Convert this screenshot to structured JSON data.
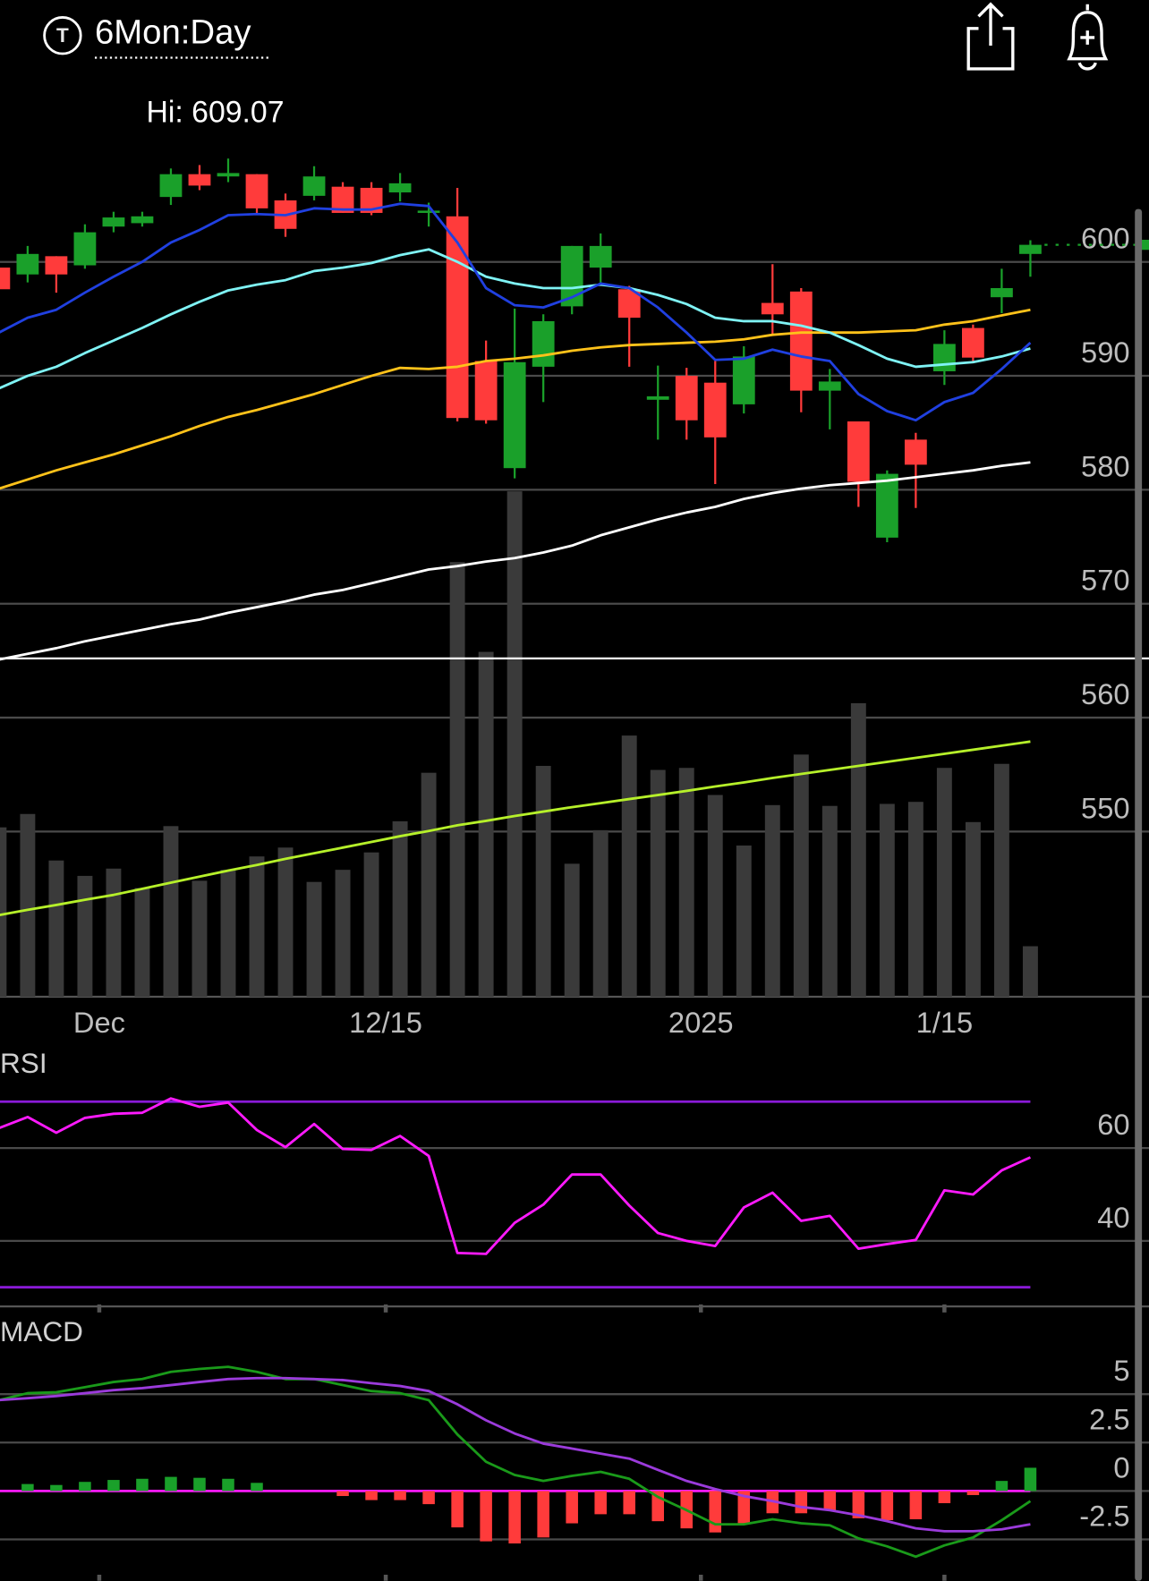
{
  "header": {
    "icon": "T",
    "title": "6Mon:Day"
  },
  "chart_data": [
    {
      "type": "candlestick",
      "annotation": "Hi: 609.07",
      "categories": [
        null,
        null,
        null,
        null,
        null,
        null,
        null,
        null,
        null,
        null,
        null,
        null,
        null,
        null,
        null,
        null,
        null,
        null,
        null,
        null,
        null,
        null,
        null,
        null,
        null,
        null,
        null,
        null,
        null,
        null,
        null,
        null,
        null,
        null,
        null,
        null,
        null
      ],
      "open": [
        599.5,
        598.9,
        600.5,
        599.7,
        603.1,
        603.4,
        605.7,
        607.7,
        607.5,
        607.7,
        605.4,
        605.8,
        606.6,
        606.5,
        606.1,
        604.3,
        604.0,
        591.3,
        581.9,
        590.8,
        596.1,
        599.5,
        597.6,
        587.9,
        590.0,
        589.4,
        587.5,
        596.4,
        597.4,
        588.7,
        586.0,
        575.8,
        584.4,
        590.4,
        594.2,
        596.9,
        600.7
      ],
      "high": [
        599.7,
        601.4,
        600.5,
        603.3,
        604.4,
        604.4,
        608.2,
        608.5,
        609.07,
        607.7,
        606.0,
        608.4,
        607.0,
        607.0,
        607.8,
        605.2,
        606.5,
        593.1,
        595.9,
        595.4,
        601.4,
        602.5,
        597.9,
        590.9,
        590.7,
        591.3,
        592.6,
        599.8,
        597.7,
        590.6,
        586.0,
        581.7,
        585.0,
        594.0,
        594.5,
        599.4,
        601.9
      ],
      "low": [
        597.4,
        598.2,
        597.3,
        599.4,
        602.6,
        603.1,
        605.0,
        606.3,
        607.0,
        604.2,
        602.2,
        605.4,
        604.3,
        604.1,
        605.3,
        603.1,
        586.0,
        585.8,
        581.0,
        587.7,
        595.4,
        598.2,
        590.8,
        584.4,
        584.4,
        580.5,
        586.7,
        593.5,
        586.8,
        585.3,
        578.5,
        575.4,
        578.4,
        589.2,
        591.1,
        595.5,
        598.7
      ],
      "close": [
        597.6,
        600.7,
        598.9,
        602.6,
        603.9,
        604.0,
        607.7,
        606.7,
        607.8,
        604.7,
        602.9,
        607.5,
        604.3,
        604.3,
        606.9,
        604.5,
        586.3,
        586.1,
        591.2,
        594.8,
        601.4,
        601.4,
        595.1,
        588.2,
        586.1,
        584.6,
        591.7,
        595.4,
        588.7,
        589.5,
        580.7,
        581.4,
        582.2,
        592.8,
        591.6,
        597.7,
        601.5
      ],
      "up_color": "#1aa02a",
      "down_color": "#ff3b3b",
      "overlays": [
        {
          "color": "#ffffff",
          "values": [
            565.1,
            565.6,
            566.1,
            566.7,
            567.2,
            567.7,
            568.2,
            568.6,
            569.2,
            569.7,
            570.2,
            570.8,
            571.2,
            571.8,
            572.4,
            573.0,
            573.3,
            573.7,
            574.0,
            574.5,
            575.1,
            576.0,
            576.7,
            577.4,
            578.0,
            578.5,
            579.2,
            579.7,
            580.1,
            580.4,
            580.6,
            580.8,
            581.1,
            581.4,
            581.7,
            582.1,
            582.4
          ]
        },
        {
          "color": "#ffc21a",
          "values": [
            580.1,
            580.9,
            581.7,
            582.4,
            583.1,
            583.9,
            584.7,
            585.6,
            586.4,
            587.0,
            587.7,
            588.4,
            589.2,
            590.0,
            590.7,
            590.6,
            590.8,
            591.3,
            591.5,
            591.8,
            592.2,
            592.5,
            592.7,
            592.8,
            592.9,
            593.0,
            593.2,
            593.6,
            593.8,
            593.8,
            593.8,
            593.9,
            594.0,
            594.5,
            594.8,
            595.3,
            595.8
          ]
        },
        {
          "color": "#7ff3f5",
          "values": [
            588.9,
            590.0,
            590.8,
            592.0,
            593.1,
            594.2,
            595.4,
            596.5,
            597.5,
            598.0,
            598.4,
            599.2,
            599.5,
            599.9,
            600.6,
            601.1,
            600.0,
            598.7,
            598.1,
            597.7,
            597.7,
            598.0,
            597.7,
            597.1,
            596.3,
            595.1,
            594.8,
            594.8,
            594.4,
            593.8,
            592.7,
            591.5,
            590.8,
            591.0,
            591.2,
            591.7,
            592.4
          ]
        },
        {
          "color": "#2040e0",
          "values": [
            593.8,
            595.1,
            595.8,
            597.3,
            598.7,
            600.0,
            601.7,
            602.8,
            604.1,
            604.2,
            604.1,
            604.7,
            604.6,
            604.6,
            605.1,
            604.9,
            601.7,
            597.7,
            596.2,
            596.0,
            596.9,
            598.1,
            597.7,
            596.0,
            593.8,
            591.4,
            591.5,
            592.3,
            591.7,
            591.3,
            588.4,
            586.9,
            586.1,
            587.7,
            588.5,
            590.6,
            592.9
          ]
        }
      ],
      "ref_line": {
        "value": 565.2,
        "color": "#ffffff"
      },
      "ylim": [
        535.5,
        615
      ],
      "yticks": [
        600,
        590,
        580,
        570,
        560,
        550
      ],
      "grid": true,
      "xticks": [
        {
          "value": 3.5,
          "label": "Dec"
        },
        {
          "value": 13.5,
          "label": "12/15"
        },
        {
          "value": 24.5,
          "label": "2025"
        },
        {
          "value": 33,
          "label": "1/15"
        }
      ]
    },
    {
      "type": "bar",
      "color": "#3a3a3a",
      "values": [
        41.9,
        45.2,
        33.7,
        29.9,
        31.7,
        26.9,
        42.2,
        28.7,
        31.4,
        34.7,
        36.9,
        28.4,
        31.4,
        35.7,
        43.4,
        55.4,
        107.5,
        85.3,
        125.0,
        57.1,
        32.9,
        41.2,
        64.6,
        56.1,
        56.6,
        49.9,
        37.4,
        47.4,
        59.9,
        47.2,
        72.6,
        47.7,
        48.2,
        56.6,
        43.2,
        57.6,
        12.5
      ],
      "ma": {
        "color": "#b6f02a",
        "values": [
          20.2,
          21.5,
          22.7,
          24.0,
          25.2,
          26.7,
          28.2,
          29.7,
          31.2,
          32.6,
          34.1,
          35.5,
          36.9,
          38.3,
          39.7,
          41.0,
          42.4,
          43.5,
          44.7,
          45.8,
          46.9,
          47.9,
          48.9,
          49.9,
          50.9,
          52.0,
          53.0,
          54.1,
          55.1,
          56.1,
          57.1,
          58.1,
          59.1,
          60.1,
          61.1,
          62.1,
          63.1
        ]
      },
      "ylim": [
        0,
        224
      ]
    },
    {
      "type": "line",
      "title": "RSI",
      "series": [
        {
          "color": "#ff1aff",
          "values": [
            64.3,
            66.7,
            63.3,
            66.5,
            67.4,
            67.6,
            70.7,
            68.9,
            69.8,
            63.9,
            60.2,
            65.2,
            59.8,
            59.6,
            62.6,
            58.3,
            37.4,
            37.2,
            43.9,
            47.8,
            54.3,
            54.3,
            47.6,
            41.7,
            40.0,
            38.9,
            47.2,
            50.4,
            44.3,
            45.4,
            38.3,
            39.3,
            40.2,
            50.9,
            50.0,
            55.2,
            58.0
          ]
        }
      ],
      "levels": [
        70,
        30
      ],
      "level_color": "#8a1ad8",
      "ylim": [
        26,
        80
      ],
      "yticks": [
        60,
        40
      ],
      "grid": true
    },
    {
      "type": "macd",
      "title": "MACD",
      "series": [
        {
          "color": "#1a9a1a",
          "values": [
            4.69,
            5.05,
            5.1,
            5.36,
            5.63,
            5.78,
            6.15,
            6.3,
            6.41,
            6.15,
            5.78,
            5.78,
            5.47,
            5.16,
            5.05,
            4.69,
            2.92,
            1.51,
            0.83,
            0.52,
            0.78,
            0.99,
            0.63,
            -0.31,
            -0.99,
            -1.72,
            -1.72,
            -1.46,
            -1.67,
            -1.77,
            -2.45,
            -2.86,
            -3.39,
            -2.81,
            -2.4,
            -1.51,
            -0.52
          ]
        },
        {
          "color": "#9b3bdb",
          "values": [
            4.69,
            4.79,
            4.9,
            5.05,
            5.21,
            5.31,
            5.47,
            5.63,
            5.78,
            5.83,
            5.83,
            5.78,
            5.73,
            5.57,
            5.42,
            5.16,
            4.48,
            3.65,
            2.97,
            2.45,
            2.19,
            1.93,
            1.67,
            1.09,
            0.52,
            0.1,
            -0.26,
            -0.52,
            -0.83,
            -0.99,
            -1.25,
            -1.56,
            -1.93,
            -2.08,
            -2.08,
            -1.98,
            -1.72
          ]
        }
      ],
      "histogram": {
        "up_color": "#1aa02a",
        "down_color": "#ff3b3b",
        "values": [
          0,
          0.36,
          0.31,
          0.47,
          0.57,
          0.63,
          0.73,
          0.68,
          0.63,
          0.42,
          0,
          0,
          -0.26,
          -0.47,
          -0.47,
          -0.68,
          -1.88,
          -2.6,
          -2.71,
          -2.4,
          -1.67,
          -1.2,
          -1.2,
          -1.56,
          -1.93,
          -2.14,
          -1.67,
          -1.15,
          -1.15,
          -0.99,
          -1.41,
          -1.51,
          -1.46,
          -0.63,
          -0.21,
          0.52,
          1.2
        ]
      },
      "zero_color": "#ff1aff",
      "ylim": [
        -4.6,
        8.75
      ],
      "yticks": [
        5,
        2.5,
        0,
        -2.5
      ],
      "grid": true
    }
  ]
}
